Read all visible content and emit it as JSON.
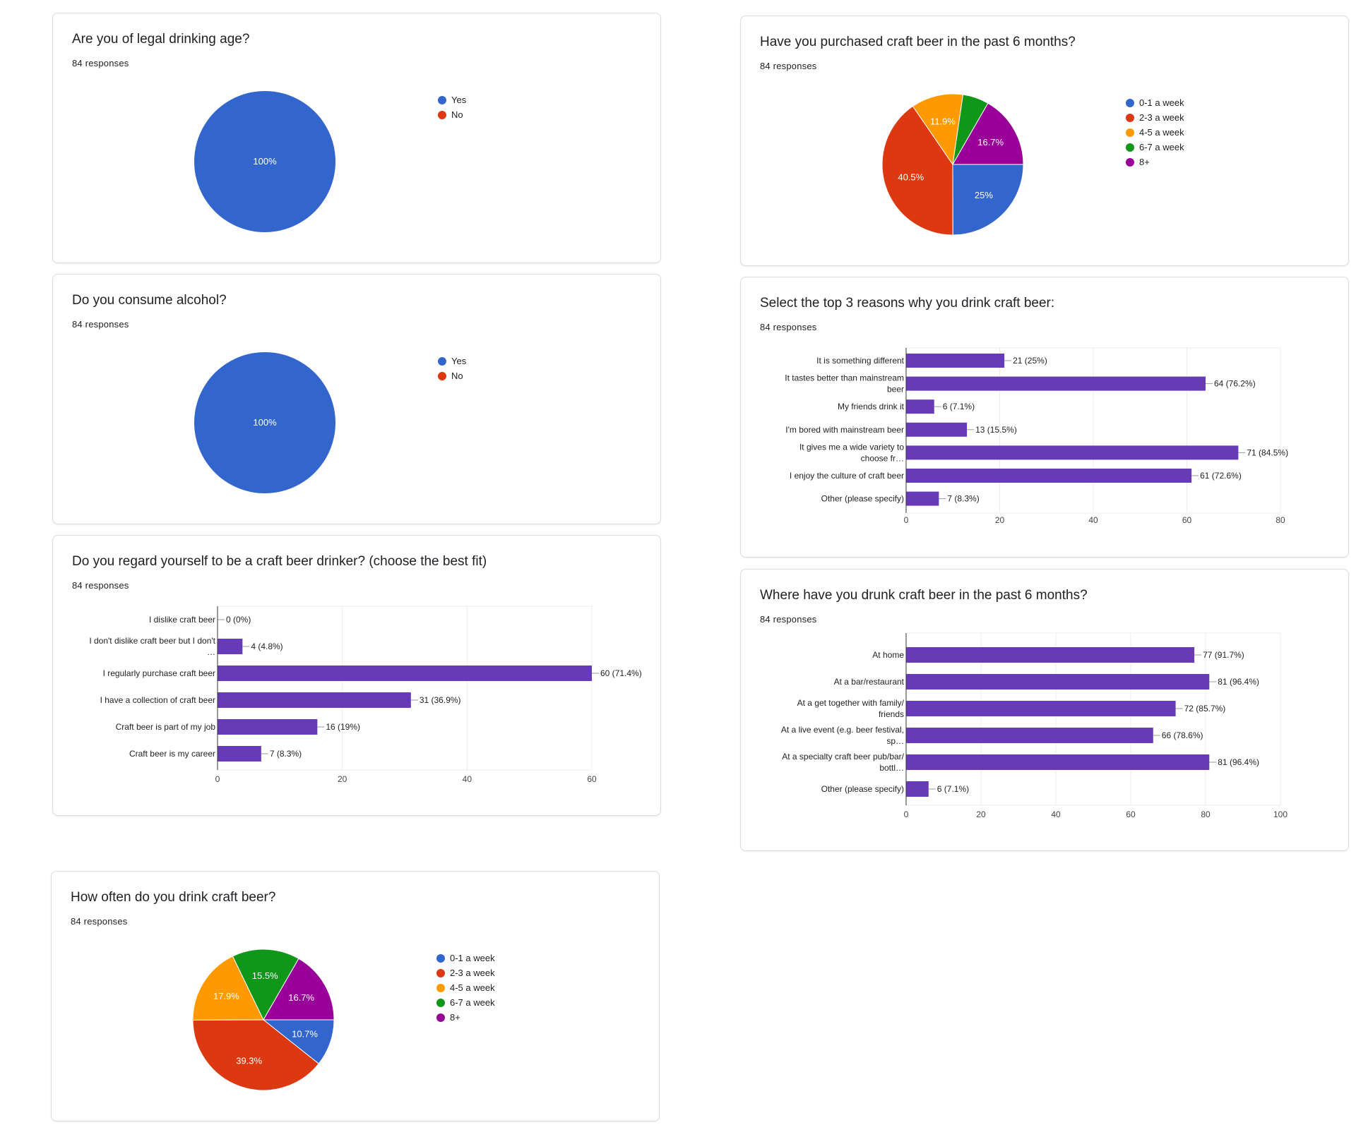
{
  "cards": {
    "legal_age": {
      "title": "Are you of legal drinking age?",
      "responses": "84 responses"
    },
    "consume": {
      "title": "Do you consume alcohol?",
      "responses": "84 responses"
    },
    "drinker": {
      "title": "Do you regard yourself to be a craft beer drinker? (choose the best fit)",
      "responses": "84 responses"
    },
    "frequency": {
      "title": "How often do you drink craft beer?",
      "responses": "84 responses"
    },
    "purchased": {
      "title": "Have you purchased craft beer in the past 6 months?",
      "responses": "84 responses"
    },
    "reasons": {
      "title": "Select the top 3 reasons why you drink craft beer:",
      "responses": "84 responses"
    },
    "where": {
      "title": "Where have you drunk craft beer in the past 6 months?",
      "responses": "84 responses"
    }
  },
  "colors": {
    "blue": "#3366cc",
    "red": "#dc3912",
    "orange": "#ff9900",
    "green": "#109618",
    "purple": "#990099",
    "bar": "#673ab7"
  },
  "chart_data": [
    {
      "id": "legal_age",
      "type": "pie",
      "title": "Are you of legal drinking age?",
      "slices": [
        {
          "label": "Yes",
          "value": 100,
          "display": "100%",
          "color": "#3366cc"
        },
        {
          "label": "No",
          "value": 0,
          "display": "",
          "color": "#dc3912"
        }
      ],
      "legend": [
        "Yes",
        "No"
      ],
      "legend_position": "right"
    },
    {
      "id": "consume",
      "type": "pie",
      "title": "Do you consume alcohol?",
      "slices": [
        {
          "label": "Yes",
          "value": 100,
          "display": "100%",
          "color": "#3366cc"
        },
        {
          "label": "No",
          "value": 0,
          "display": "",
          "color": "#dc3912"
        }
      ],
      "legend": [
        "Yes",
        "No"
      ],
      "legend_position": "right"
    },
    {
      "id": "drinker",
      "type": "bar",
      "orientation": "horizontal",
      "title": "Do you regard yourself to be a craft beer drinker? (choose the best fit)",
      "categories": [
        [
          "I dislike craft beer"
        ],
        [
          "I don't dislike craft beer but I don't",
          "…"
        ],
        [
          "I regularly purchase craft beer"
        ],
        [
          "I have a collection of craft beer"
        ],
        [
          "Craft beer is part of my job"
        ],
        [
          "Craft beer is my career"
        ]
      ],
      "values": [
        0,
        4,
        60,
        31,
        16,
        7
      ],
      "value_labels": [
        "0 (0%)",
        "4 (4.8%)",
        "60 (71.4%)",
        "31 (36.9%)",
        "16 (19%)",
        "7 (8.3%)"
      ],
      "xlim": [
        0,
        60
      ],
      "ticks": [
        0,
        20,
        40,
        60
      ],
      "grid": true
    },
    {
      "id": "frequency",
      "type": "pie",
      "title": "How often do you drink craft beer?",
      "slices": [
        {
          "label": "0-1 a week",
          "value": 10.7,
          "display": "10.7%",
          "color": "#3366cc"
        },
        {
          "label": "2-3 a week",
          "value": 39.3,
          "display": "39.3%",
          "color": "#dc3912"
        },
        {
          "label": "4-5 a week",
          "value": 17.9,
          "display": "17.9%",
          "color": "#ff9900"
        },
        {
          "label": "6-7 a week",
          "value": 15.5,
          "display": "15.5%",
          "color": "#109618"
        },
        {
          "label": "8+",
          "value": 16.7,
          "display": "16.7%",
          "color": "#990099"
        }
      ],
      "legend": [
        "0-1 a week",
        "2-3 a week",
        "4-5 a week",
        "6-7 a week",
        "8+"
      ],
      "legend_position": "right"
    },
    {
      "id": "purchased",
      "type": "pie",
      "title": "Have you purchased craft beer in the past 6 months?",
      "slices": [
        {
          "label": "0-1 a week",
          "value": 25,
          "display": "25%",
          "color": "#3366cc"
        },
        {
          "label": "2-3 a week",
          "value": 40.5,
          "display": "40.5%",
          "color": "#dc3912"
        },
        {
          "label": "4-5 a week",
          "value": 11.9,
          "display": "11.9%",
          "color": "#ff9900"
        },
        {
          "label": "6-7 a week",
          "value": 6.0,
          "display": "",
          "color": "#109618"
        },
        {
          "label": "8+",
          "value": 16.7,
          "display": "16.7%",
          "color": "#990099"
        }
      ],
      "legend": [
        "0-1 a week",
        "2-3 a week",
        "4-5 a week",
        "6-7 a week",
        "8+"
      ],
      "legend_position": "right"
    },
    {
      "id": "reasons",
      "type": "bar",
      "orientation": "horizontal",
      "title": "Select the top 3 reasons why you drink craft beer:",
      "categories": [
        [
          "It is something different"
        ],
        [
          "It tastes better than mainstream",
          "beer"
        ],
        [
          "My friends drink it"
        ],
        [
          "I'm bored with mainstream beer"
        ],
        [
          "It gives me a wide variety to",
          "choose fr…"
        ],
        [
          "I enjoy the culture of craft beer"
        ],
        [
          "Other (please specify)"
        ]
      ],
      "values": [
        21,
        64,
        6,
        13,
        71,
        61,
        7
      ],
      "value_labels": [
        "21 (25%)",
        "64 (76.2%)",
        "6 (7.1%)",
        "13 (15.5%)",
        "71 (84.5%)",
        "61 (72.6%)",
        "7 (8.3%)"
      ],
      "xlim": [
        0,
        80
      ],
      "ticks": [
        0,
        20,
        40,
        60,
        80
      ],
      "grid": true
    },
    {
      "id": "where",
      "type": "bar",
      "orientation": "horizontal",
      "title": "Where have you drunk craft beer in the past 6 months?",
      "categories": [
        [
          "At home"
        ],
        [
          "At a bar/restaurant"
        ],
        [
          "At a get together with family/",
          "friends"
        ],
        [
          "At a live event (e.g. beer festival,",
          "sp…"
        ],
        [
          "At a specialty craft beer pub/bar/",
          "bottl…"
        ],
        [
          "Other (please specify)"
        ]
      ],
      "values": [
        77,
        81,
        72,
        66,
        81,
        6
      ],
      "value_labels": [
        "77 (91.7%)",
        "81 (96.4%)",
        "72 (85.7%)",
        "66 (78.6%)",
        "81 (96.4%)",
        "6 (7.1%)"
      ],
      "xlim": [
        0,
        100
      ],
      "ticks": [
        0,
        20,
        40,
        60,
        80,
        100
      ],
      "grid": true
    }
  ]
}
